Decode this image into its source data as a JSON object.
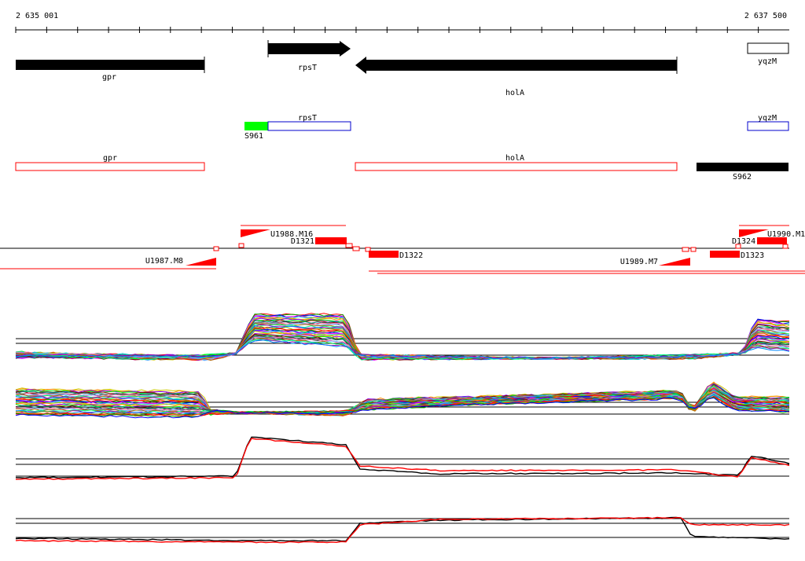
{
  "coords": {
    "start": "2 635 001",
    "end": "2 637 500"
  },
  "colors": {
    "gene_fill": "#000000",
    "red": "#ff0000",
    "green": "#00ff00",
    "blue": "#0000cc"
  },
  "genes": [
    {
      "name": "gpr",
      "label": "gpr",
      "strand": "-",
      "style": "solid-bar"
    },
    {
      "name": "rpsT",
      "label": "rpsT",
      "strand": "+",
      "style": "solid-arrow"
    },
    {
      "name": "holA",
      "label": "holA",
      "strand": "-",
      "style": "solid-arrow"
    },
    {
      "name": "yqzM",
      "label": "yqzM",
      "strand": "+",
      "style": "open-box"
    }
  ],
  "transcripts": [
    {
      "name": "rpsT",
      "label": "rpsT",
      "color": "blue"
    },
    {
      "name": "yqzM",
      "label": "yqzM",
      "color": "blue"
    },
    {
      "name": "S961",
      "label": "S961",
      "color": "green"
    },
    {
      "name": "gpr",
      "label": "gpr",
      "color": "red"
    },
    {
      "name": "holA",
      "label": "holA",
      "color": "red"
    },
    {
      "name": "S962",
      "label": "S962",
      "color": "black"
    }
  ],
  "segments": [
    {
      "label": "U1987.M8"
    },
    {
      "label": "U1988.M16"
    },
    {
      "label": "D1321"
    },
    {
      "label": "D1322"
    },
    {
      "label": "U1989.M7"
    },
    {
      "label": "D1323"
    },
    {
      "label": "D1324"
    },
    {
      "label": "U1990.M1"
    }
  ],
  "expression_panels": [
    {
      "name": "panel-1",
      "kind": "multicolor",
      "line_count": 38
    },
    {
      "name": "panel-2",
      "kind": "multicolor",
      "line_count": 38
    },
    {
      "name": "panel-3",
      "kind": "black-red"
    },
    {
      "name": "panel-4",
      "kind": "black-red"
    }
  ]
}
